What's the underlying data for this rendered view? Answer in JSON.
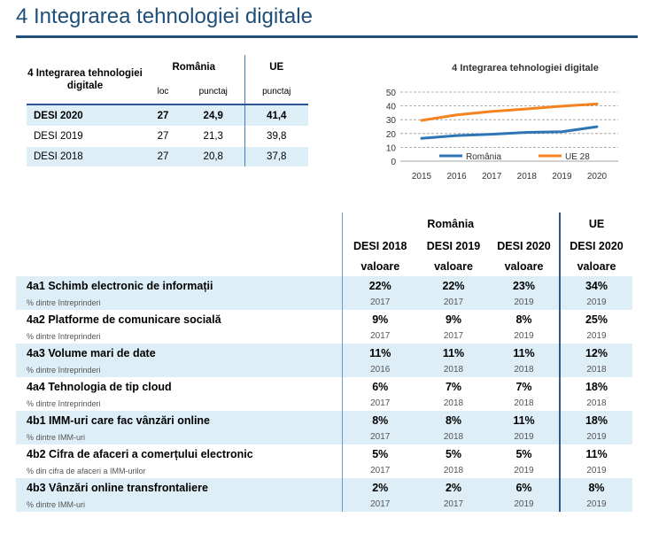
{
  "page": {
    "title": "4 Integrarea tehnologiei digitale"
  },
  "summary": {
    "header_label": "4 Integrarea tehnologiei digitale",
    "group_ro": "România",
    "group_eu": "UE",
    "sub_loc": "loc",
    "sub_punctaj": "punctaj",
    "sub_punctaj_eu": "punctaj",
    "rows": [
      {
        "label": "DESI 2020",
        "loc": "27",
        "punctaj": "24,9",
        "eu": "41,4"
      },
      {
        "label": "DESI 2019",
        "loc": "27",
        "punctaj": "21,3",
        "eu": "39,8"
      },
      {
        "label": "DESI 2018",
        "loc": "27",
        "punctaj": "20,8",
        "eu": "37,8"
      }
    ]
  },
  "chart_data": {
    "type": "line",
    "title": "4 Integrarea tehnologiei digitale",
    "x": [
      2015,
      2016,
      2017,
      2018,
      2019,
      2020
    ],
    "ylim": [
      0,
      50
    ],
    "yticks": [
      0,
      10,
      20,
      30,
      40,
      50
    ],
    "grid": true,
    "legend": "bottom",
    "series": [
      {
        "name": "România",
        "color": "#2e75b6",
        "values": [
          16.5,
          18.5,
          19.5,
          20.8,
          21.3,
          24.9
        ]
      },
      {
        "name": "UE 28",
        "color": "#f5821f",
        "values": [
          29.5,
          33.5,
          36,
          37.8,
          39.8,
          41.4
        ]
      }
    ]
  },
  "detail": {
    "group_ro": "România",
    "group_eu": "UE",
    "cols": [
      "DESI 2018",
      "DESI 2019",
      "DESI 2020",
      "DESI 2020"
    ],
    "col_sub": "valoare",
    "rows": [
      {
        "name": "4a1 Schimb electronic de informații",
        "unit": "% dintre întreprinderi",
        "vals": [
          "22%",
          "22%",
          "23%",
          "34%"
        ],
        "years": [
          "2017",
          "2017",
          "2019",
          "2019"
        ]
      },
      {
        "name": "4a2 Platforme de comunicare socială",
        "unit": "% dintre întreprinderi",
        "vals": [
          "9%",
          "9%",
          "8%",
          "25%"
        ],
        "years": [
          "2017",
          "2017",
          "2019",
          "2019"
        ]
      },
      {
        "name": "4a3 Volume mari de date",
        "unit": "% dintre întreprinderi",
        "vals": [
          "11%",
          "11%",
          "11%",
          "12%"
        ],
        "years": [
          "2016",
          "2018",
          "2018",
          "2018"
        ]
      },
      {
        "name": "4a4 Tehnologia de tip cloud",
        "unit": "% dintre întreprinderi",
        "vals": [
          "6%",
          "7%",
          "7%",
          "18%"
        ],
        "years": [
          "2017",
          "2018",
          "2018",
          "2018"
        ]
      },
      {
        "name": "4b1 IMM-uri care fac vânzări online",
        "unit": "% dintre IMM-uri",
        "vals": [
          "8%",
          "8%",
          "11%",
          "18%"
        ],
        "years": [
          "2017",
          "2018",
          "2019",
          "2019"
        ]
      },
      {
        "name": "4b2 Cifra de afaceri a comerțului electronic",
        "unit": "% din cifra de afaceri a IMM-urilor",
        "vals": [
          "5%",
          "5%",
          "5%",
          "11%"
        ],
        "years": [
          "2017",
          "2018",
          "2019",
          "2019"
        ]
      },
      {
        "name": "4b3 Vânzări online transfrontaliere",
        "unit": "% dintre IMM-uri",
        "vals": [
          "2%",
          "2%",
          "6%",
          "8%"
        ],
        "years": [
          "2017",
          "2017",
          "2019",
          "2019"
        ]
      }
    ]
  }
}
